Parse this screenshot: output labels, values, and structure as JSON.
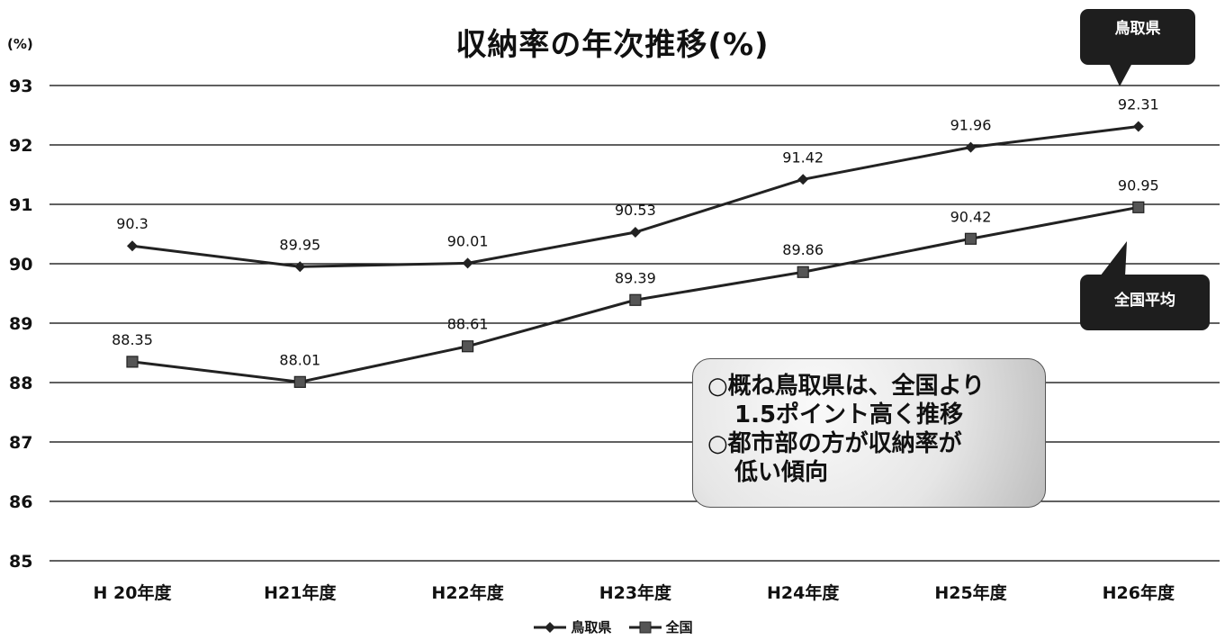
{
  "chart_data": {
    "type": "line",
    "title": "収納率の年次推移(%)",
    "y_unit_label": "(%)",
    "categories": [
      "H 20年度",
      "H21年度",
      "H22年度",
      "H23年度",
      "H24年度",
      "H25年度",
      "H26年度"
    ],
    "ylim": [
      85,
      93
    ],
    "y_ticks": [
      85,
      86,
      87,
      88,
      89,
      90,
      91,
      92,
      93
    ],
    "grid": true,
    "legend_position": "bottom",
    "series": [
      {
        "name": "鳥取県",
        "marker": "diamond",
        "values": [
          90.3,
          89.95,
          90.01,
          90.53,
          91.42,
          91.96,
          92.31
        ],
        "labels": [
          "90.3",
          "89.95",
          "90.01",
          "90.53",
          "91.42",
          "91.96",
          "92.31"
        ]
      },
      {
        "name": "全国",
        "marker": "square",
        "values": [
          88.35,
          88.01,
          88.61,
          89.39,
          89.86,
          90.42,
          90.95
        ],
        "labels": [
          "88.35",
          "88.01",
          "88.61",
          "89.39",
          "89.86",
          "90.42",
          "90.95"
        ]
      }
    ]
  },
  "callouts": {
    "tottori": "鳥取県",
    "national": "全国平均"
  },
  "note_box": {
    "line1": "○概ね鳥取県は、全国より",
    "line2": "1.5ポイント高く推移",
    "line3": "○都市部の方が収納率が",
    "line4": "低い傾向"
  },
  "colors": {
    "line": "#222222",
    "grid": "#000000",
    "callout_bg": "#1e1e1e"
  }
}
